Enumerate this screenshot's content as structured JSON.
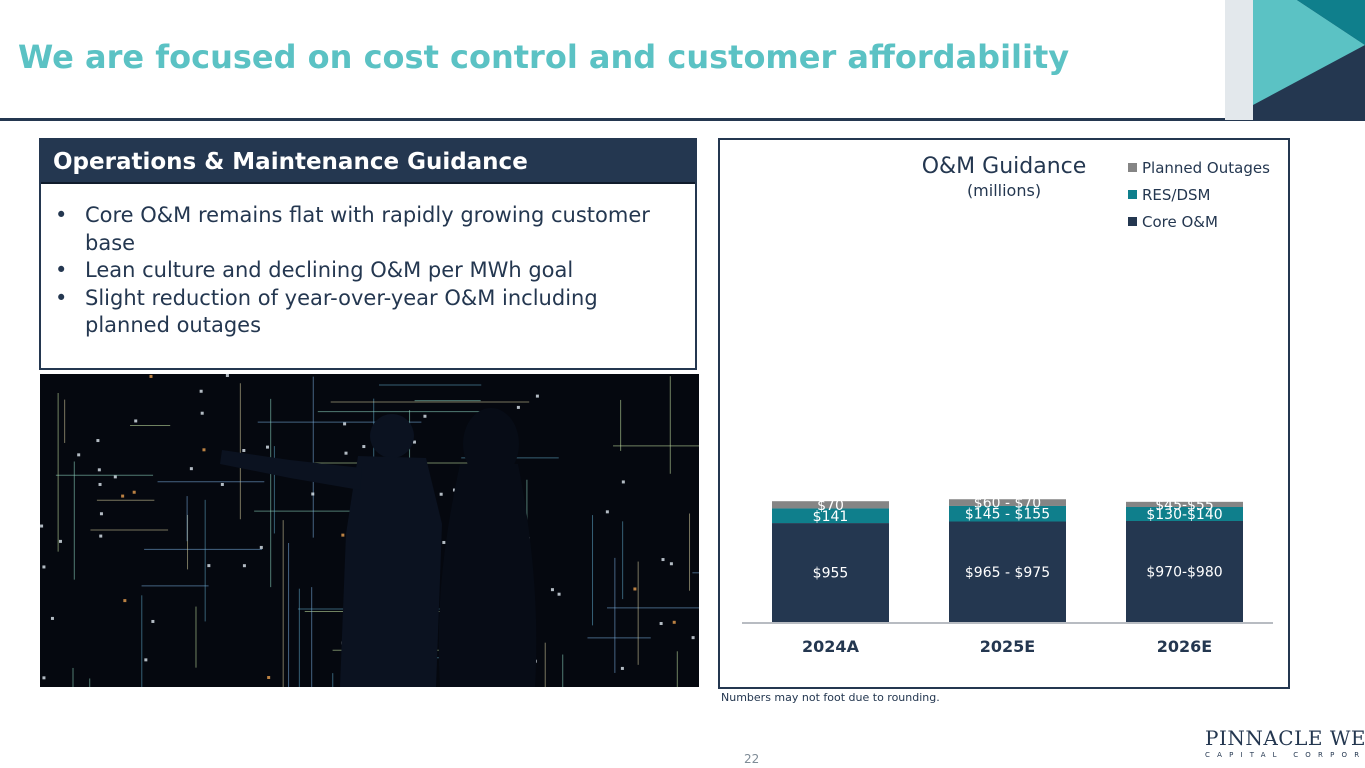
{
  "title": "We are focused on cost control and customer affordability",
  "ops_panel": {
    "header": "Operations & Maintenance Guidance",
    "bullets": [
      "Core O&M remains flat with rapidly growing customer base",
      "Lean culture and declining O&M per MWh goal",
      "Slight reduction of year-over-year O&M including planned outages"
    ]
  },
  "chart_data": {
    "type": "bar",
    "stacked": true,
    "title": "O&M Guidance",
    "subtitle": "(millions)",
    "categories": [
      "2024A",
      "2025E",
      "2026E"
    ],
    "series": [
      {
        "name": "Core O&M",
        "values": [
          955,
          970,
          975
        ],
        "labels": [
          "$955",
          "$965 - $975",
          "$970-$980"
        ],
        "color": "#243750"
      },
      {
        "name": "RES/DSM",
        "values": [
          141,
          150,
          135
        ],
        "labels": [
          "$141",
          "$145 - $155",
          "$130-$140"
        ],
        "color": "#0f7f8c"
      },
      {
        "name": "Planned Outages",
        "values": [
          70,
          65,
          50
        ],
        "labels": [
          "$70",
          "$60 - $70",
          "$45-$55"
        ],
        "color": "#858585"
      }
    ],
    "legend": {
      "position": "top-right",
      "order": [
        "Planned Outages",
        "RES/DSM",
        "Core O&M"
      ]
    },
    "grid": false
  },
  "footnote": "Numbers may not foot due to rounding.",
  "page_number": "22",
  "logo": {
    "main": "PINNACLE WEST",
    "sub": "CAPITAL CORPORATION"
  },
  "colors": {
    "accent": "#5bc2c4",
    "navy": "#243750",
    "teal": "#0f7f8c",
    "gray": "#858585"
  }
}
